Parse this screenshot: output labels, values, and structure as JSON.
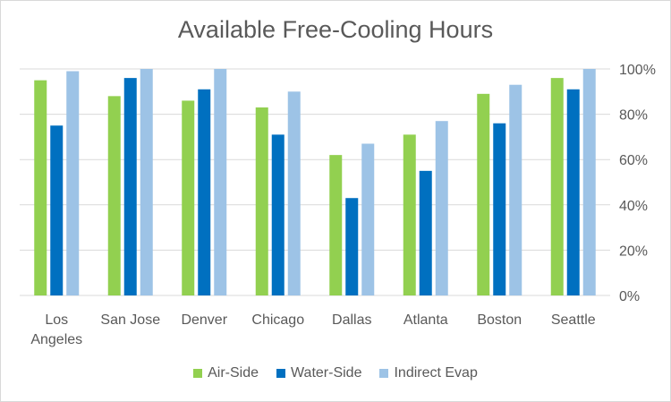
{
  "chart_data": {
    "type": "bar",
    "title": "Available Free-Cooling Hours",
    "xlabel": "",
    "ylabel": "",
    "categories": [
      "Los Angeles",
      "San Jose",
      "Denver",
      "Chicago",
      "Dallas",
      "Atlanta",
      "Boston",
      "Seattle"
    ],
    "category_lines": [
      [
        "Los",
        "Angeles"
      ],
      [
        "San Jose"
      ],
      [
        "Denver"
      ],
      [
        "Chicago"
      ],
      [
        "Dallas"
      ],
      [
        "Atlanta"
      ],
      [
        "Boston"
      ],
      [
        "Seattle"
      ]
    ],
    "series": [
      {
        "name": "Air-Side",
        "color": "#92d050",
        "values": [
          95,
          88,
          86,
          83,
          62,
          71,
          89,
          96
        ]
      },
      {
        "name": "Water-Side",
        "color": "#0070c0",
        "values": [
          75,
          96,
          91,
          71,
          43,
          55,
          76,
          91
        ]
      },
      {
        "name": "Indirect Evap",
        "color": "#9dc3e6",
        "values": [
          99,
          100,
          100,
          90,
          67,
          77,
          93,
          100
        ]
      }
    ],
    "ylim": [
      0,
      100
    ],
    "yticks": [
      "0%",
      "20%",
      "40%",
      "60%",
      "80%",
      "100%"
    ],
    "y_axis_side": "right",
    "grid": true,
    "legend_position": "bottom"
  }
}
